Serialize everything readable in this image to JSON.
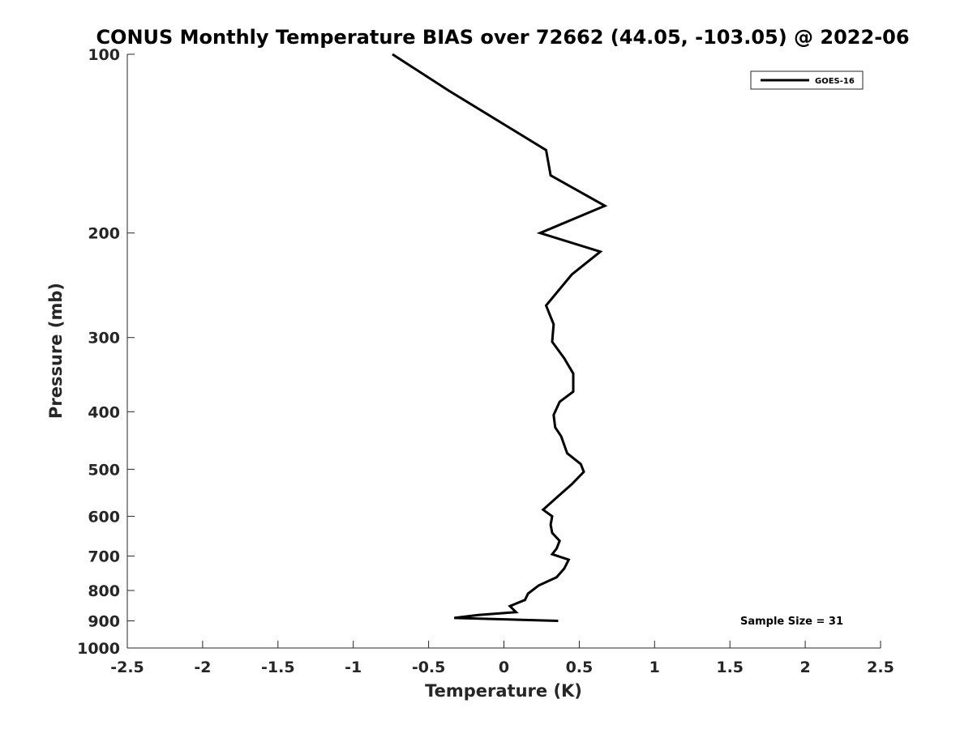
{
  "chart_data": {
    "type": "line",
    "title": "CONUS Monthly Temperature BIAS over 72662 (44.05, -103.05) @ 2022-06",
    "xlabel": "Temperature (K)",
    "ylabel": "Pressure (mb)",
    "xlim": [
      -2.5,
      2.5
    ],
    "ylim": [
      1000,
      100
    ],
    "yscale": "log",
    "y_reversed": true,
    "x_ticks": [
      "-2.5",
      "-2",
      "-1.5",
      "-1",
      "-0.5",
      "0",
      "0.5",
      "1",
      "1.5",
      "2",
      "2.5"
    ],
    "x_tick_values": [
      -2.5,
      -2,
      -1.5,
      -1,
      -0.5,
      0,
      0.5,
      1,
      1.5,
      2,
      2.5
    ],
    "y_ticks": [
      "100",
      "200",
      "300",
      "400",
      "500",
      "600",
      "700",
      "800",
      "900",
      "1000"
    ],
    "y_tick_values": [
      100,
      200,
      300,
      400,
      500,
      600,
      700,
      800,
      900,
      1000
    ],
    "grid": false,
    "legend_position": "top-right",
    "annotation": "Sample Size = 31",
    "series": [
      {
        "name": "GOES-16",
        "color": "#000000",
        "x": [
          -0.74,
          -0.37,
          0.28,
          0.31,
          0.67,
          0.24,
          0.64,
          0.45,
          0.28,
          0.33,
          0.32,
          0.4,
          0.46,
          0.46,
          0.37,
          0.33,
          0.34,
          0.38,
          0.42,
          0.51,
          0.53,
          0.45,
          0.36,
          0.26,
          0.32,
          0.31,
          0.32,
          0.37,
          0.35,
          0.32,
          0.43,
          0.4,
          0.35,
          0.23,
          0.16,
          0.14,
          0.04,
          0.08,
          -0.17,
          -0.33,
          0.36
        ],
        "y": [
          100,
          115,
          145,
          160,
          180,
          200,
          215,
          235,
          265,
          285,
          305,
          325,
          345,
          370,
          385,
          405,
          425,
          440,
          470,
          490,
          505,
          530,
          555,
          585,
          600,
          620,
          640,
          660,
          680,
          695,
          710,
          735,
          760,
          785,
          810,
          830,
          850,
          870,
          880,
          890,
          900
        ]
      }
    ]
  }
}
